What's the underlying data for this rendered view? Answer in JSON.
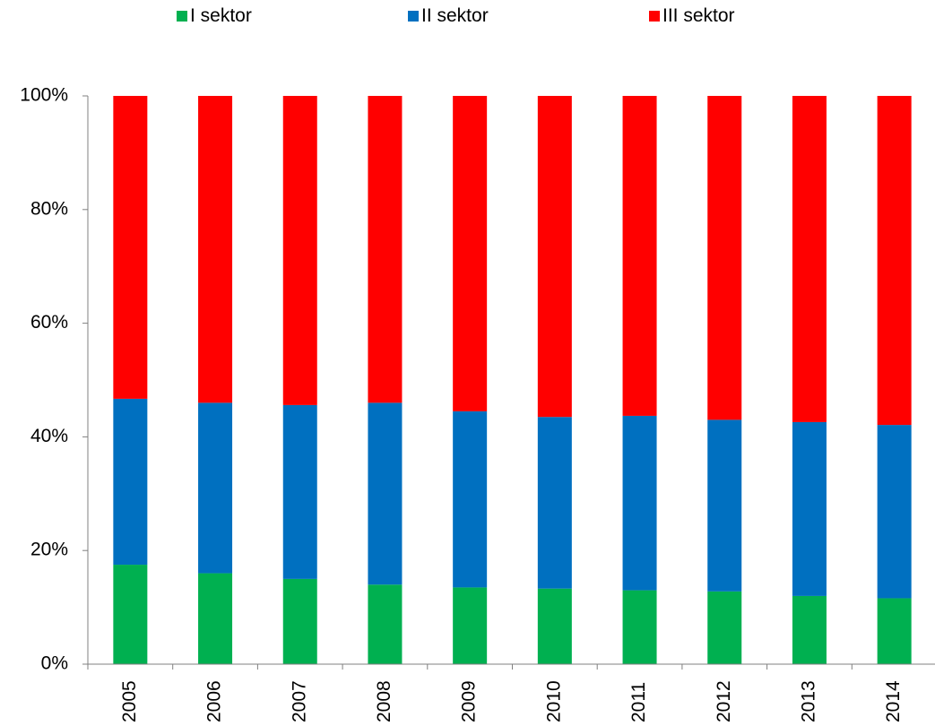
{
  "chart_data": {
    "type": "bar",
    "stacked": "percent",
    "categories": [
      "2005",
      "2006",
      "2007",
      "2008",
      "2009",
      "2010",
      "2011",
      "2012",
      "2013",
      "2014"
    ],
    "series": [
      {
        "name": "I sektor",
        "color": "#00b050",
        "values": [
          17.5,
          16.0,
          15.0,
          14.0,
          13.5,
          13.3,
          13.0,
          12.8,
          12.0,
          11.6
        ]
      },
      {
        "name": "II sektor",
        "color": "#0070c0",
        "values": [
          29.2,
          30.0,
          30.6,
          32.0,
          31.0,
          30.2,
          30.7,
          30.2,
          30.6,
          30.5
        ]
      },
      {
        "name": "III sektor",
        "color": "#ff0000",
        "values": [
          53.3,
          54.0,
          54.4,
          54.0,
          55.5,
          56.5,
          56.3,
          57.0,
          57.4,
          57.9
        ]
      }
    ],
    "ylim": [
      0,
      100
    ],
    "yticks": [
      "0%",
      "20%",
      "40%",
      "60%",
      "80%",
      "100%"
    ],
    "ytick_values": [
      0,
      20,
      40,
      60,
      80,
      100
    ],
    "grid": false,
    "legend_position": "top"
  }
}
